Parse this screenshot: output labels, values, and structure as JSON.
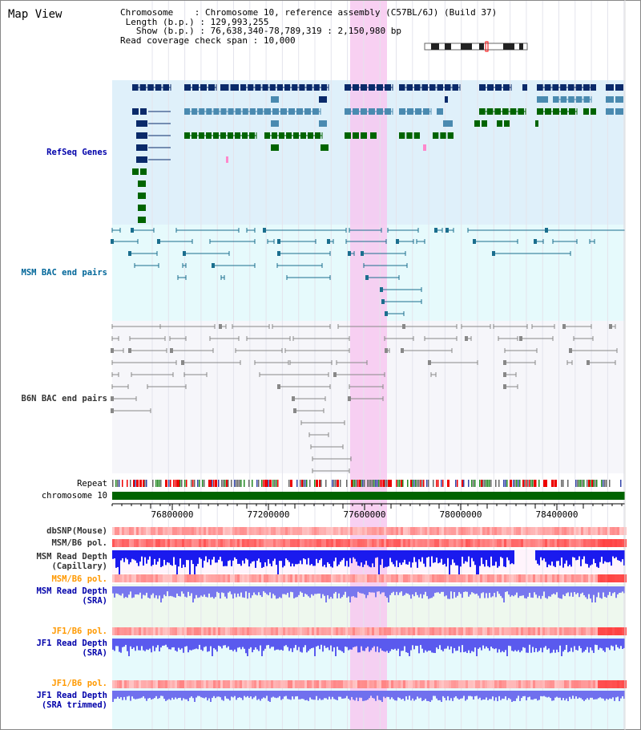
{
  "view_title": "Map View",
  "info": {
    "chromosome_label": "Chromosome",
    "chromosome_value": "Chromosome 10, reference assembly (C57BL/6J) (Build 37)",
    "length_label": "Length (b.p.)",
    "length_value": "129,993,255",
    "show_label": "Show (b.p.)",
    "show_value": "76,638,340-78,789,319 : 2,150,980 bp",
    "coverage_label": "Read coverage check span",
    "coverage_value": "10,000"
  },
  "tracks": {
    "refseq": "RefSeq Genes",
    "msm_bac": "MSM BAC end pairs",
    "b6n_bac": "B6N BAC end pairs",
    "repeat": "Repeat",
    "chromosome": "chromosome 10",
    "dbsnp": "dbSNP(Mouse)",
    "msm_b6_pol_1": "MSM/B6 pol.",
    "msm_depth_cap_1": "MSM Read Depth",
    "msm_depth_cap_2": "(Capillary)",
    "msm_b6_pol_2": "MSM/B6 pol.",
    "msm_depth_sra_1": "MSM Read Depth",
    "msm_depth_sra_2": "(SRA)",
    "jf1_b6_pol_1": "JF1/B6 pol.",
    "jf1_depth_sra_1": "JF1 Read Depth",
    "jf1_depth_sra_2": "(SRA)",
    "jf1_b6_pol_2": "JF1/B6 pol.",
    "jf1_depth_trim_1": "JF1 Read Depth",
    "jf1_depth_trim_2": "(SRA trimmed)"
  },
  "axis": {
    "ticks": [
      "76800000",
      "77200000",
      "77600000",
      "78000000",
      "78400000"
    ]
  },
  "colors": {
    "refseq_label": "#0000aa",
    "msm_bac_label": "#006699",
    "b6n_bac_label": "#333333",
    "pol_label": "#ff9900",
    "depth_label": "#0000aa",
    "highlight": "#f7c8f0",
    "refseq_dark": "#0a2a6a",
    "refseq_mid": "#4a8ab0",
    "refseq_green": "#006400",
    "msm_bac": "#1a6e8e",
    "b6n_bac": "#888888",
    "chromosome_bar": "#006400",
    "depth_blue": "#3333ee",
    "pol_red": "#ee3333"
  }
}
